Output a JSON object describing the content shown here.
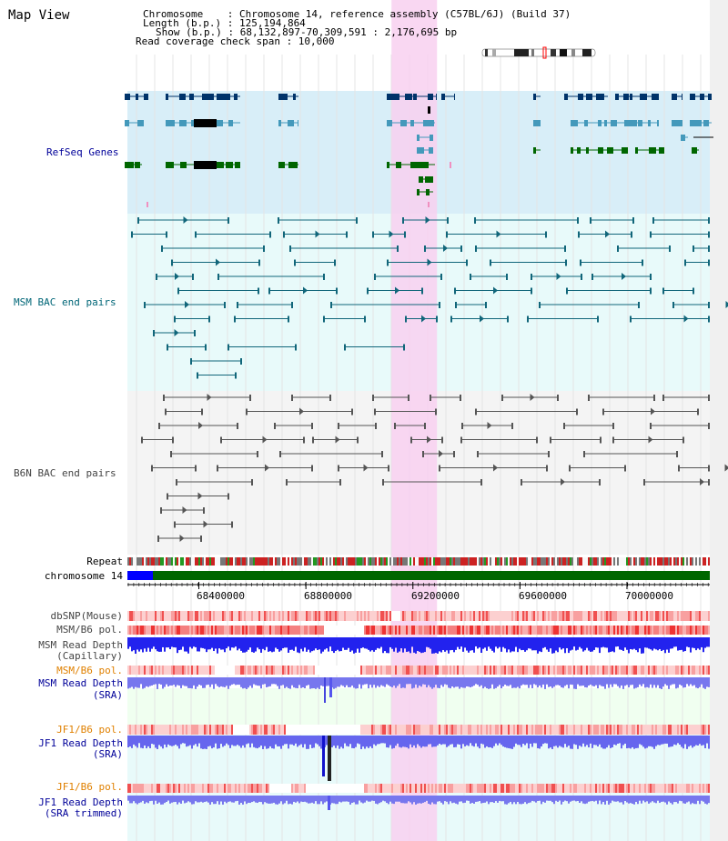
{
  "app_title": "Map View",
  "header": {
    "chromosome_line": "Chromosome    : Chromosome 14, reference assembly (C57BL/6J) (Build 37)",
    "length_line": "Length (b.p.) : 125,194,864",
    "show_line": "Show (b.p.) : 68,132,897-70,309,591 : 2,176,695 bp",
    "coverage_line": "Read coverage check span : 10,000"
  },
  "tracks": {
    "refseq": "RefSeq Genes",
    "msm_bac": "MSM BAC end pairs",
    "b6n_bac": "B6N BAC end pairs",
    "repeat": "Repeat",
    "chromosome": "chromosome 14",
    "dbsnp": "dbSNP(Mouse)",
    "msm_b6_pol_1": "MSM/B6 pol.",
    "msm_read_depth_cap_1": "MSM Read Depth",
    "msm_read_depth_cap_2": "(Capillary)",
    "msm_b6_pol_2": "MSM/B6 pol.",
    "msm_read_depth_sra_1": "MSM Read Depth",
    "msm_read_depth_sra_2": "(SRA)",
    "jf1_b6_pol_1": "JF1/B6 pol.",
    "jf1_read_depth_sra_1": "JF1 Read Depth",
    "jf1_read_depth_sra_2": "(SRA)",
    "jf1_b6_pol_2": "JF1/B6 pol.",
    "jf1_read_depth_trim_1": "JF1 Read Depth",
    "jf1_read_depth_trim_2": "(SRA trimmed)"
  },
  "axis": {
    "ticks": [
      {
        "pos": 68400000,
        "label": "68400000"
      },
      {
        "pos": 68800000,
        "label": "68800000"
      },
      {
        "pos": 69200000,
        "label": "69200000"
      },
      {
        "pos": 69600000,
        "label": "69600000"
      },
      {
        "pos": 70000000,
        "label": "70000000"
      }
    ],
    "start": 68132897,
    "end": 70309591
  },
  "highlight": {
    "start": 69120000,
    "end": 69290000
  },
  "colors": {
    "refseq_bg": "#d8eef8",
    "msm_bg": "#e8fafa",
    "b6n_bg": "#f4f4f4",
    "highlight": "#f8d0f0",
    "navy": "#00336a",
    "light_blue": "#4499bb",
    "green": "#006600",
    "teal_line": "#11667a",
    "grey_line": "#555555",
    "chrom_green": "#006600",
    "chrom_blue": "#0000ff",
    "label_navy": "#000099",
    "label_teal": "#006677",
    "label_orange": "#e08000"
  }
}
